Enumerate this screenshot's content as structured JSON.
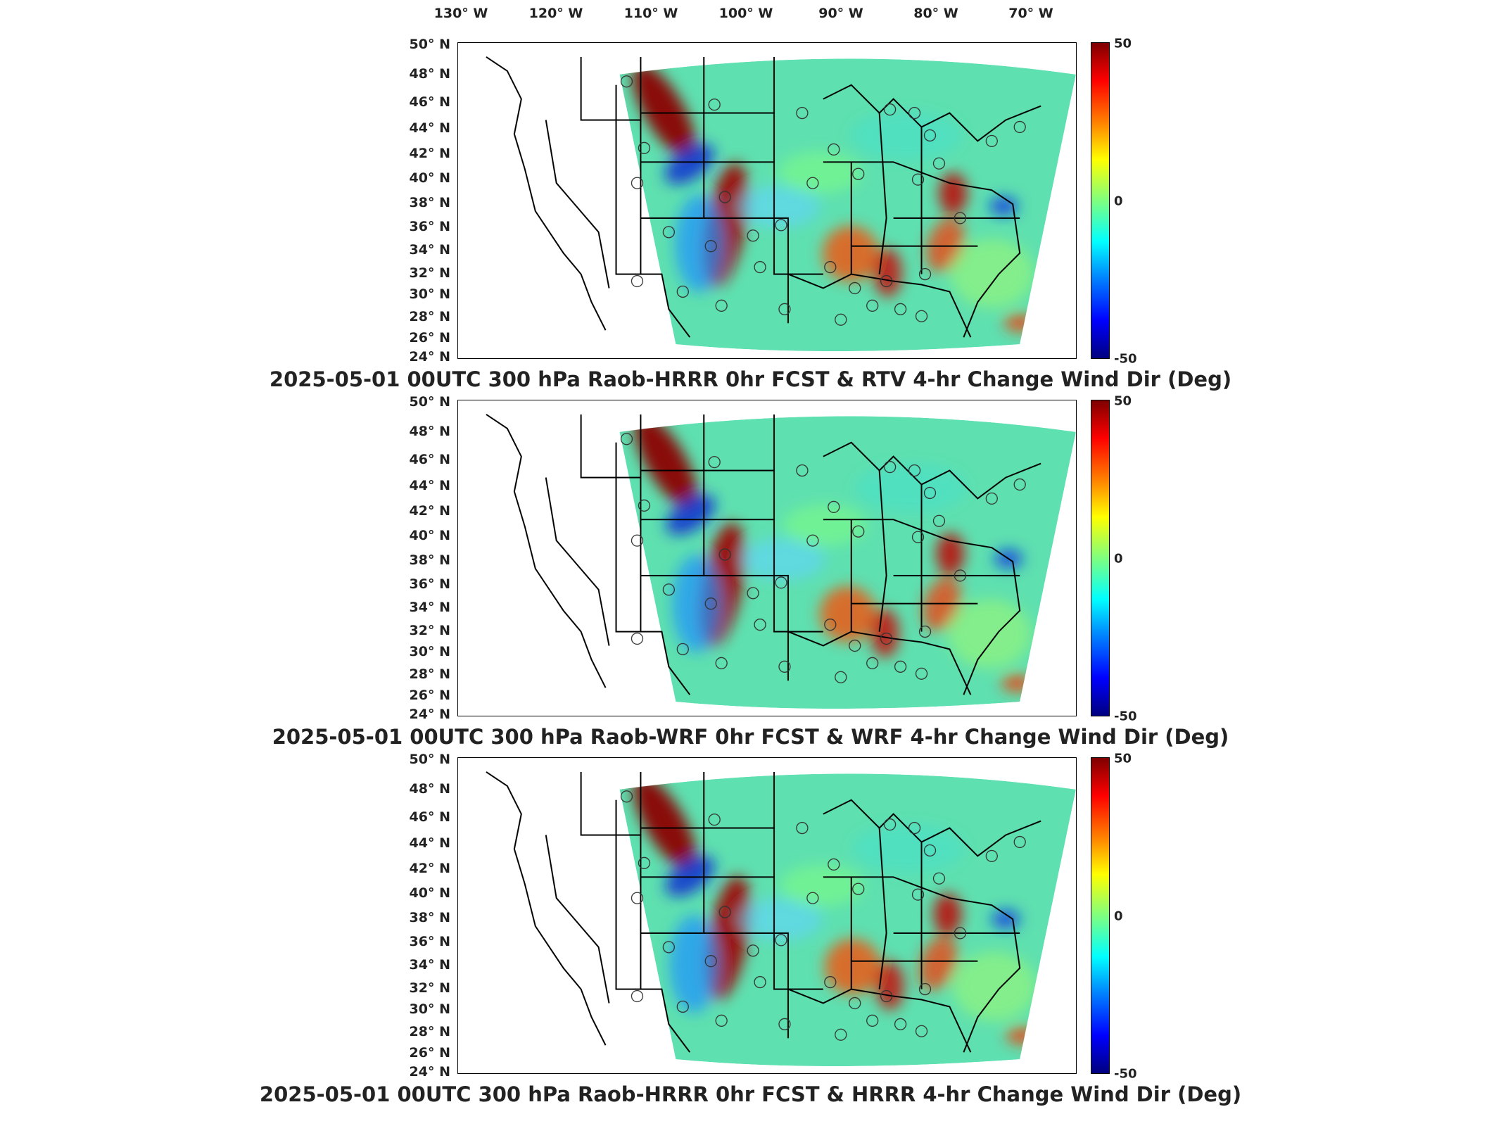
{
  "lon_labels": [
    "130° W",
    "120° W",
    "110° W",
    "100° W",
    "90° W",
    "80° W",
    "70° W"
  ],
  "lat_labels": [
    "50° N",
    "48° N",
    "46° N",
    "44° N",
    "42° N",
    "40° N",
    "38° N",
    "36° N",
    "34° N",
    "32° N",
    "30° N",
    "28° N",
    "26° N",
    "24° N"
  ],
  "colorbar": {
    "max": "50",
    "mid": "0",
    "min": "-50"
  },
  "colors": {
    "high": "#7f0000",
    "mid": "#7fff7f",
    "low": "#00007f"
  },
  "panels": [
    {
      "title": "2025-05-01 00UTC 300 hPa Raob-HRRR 0hr FCST & RTV 4-hr Change Wind Dir (Deg)"
    },
    {
      "title": "2025-05-01 00UTC 300 hPa Raob-WRF 0hr FCST & WRF 4-hr Change Wind Dir (Deg)"
    },
    {
      "title": "2025-05-01 00UTC 300 hPa Raob-HRRR 0hr FCST & HRRR 4-hr Change Wind Dir (Deg)"
    }
  ]
}
